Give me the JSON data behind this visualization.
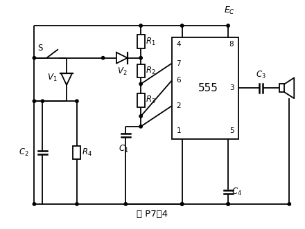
{
  "title": "图 P7－4",
  "bg_color": "#ffffff",
  "line_color": "#000000",
  "line_width": 1.3,
  "figsize": [
    4.4,
    3.31
  ],
  "dpi": 100
}
